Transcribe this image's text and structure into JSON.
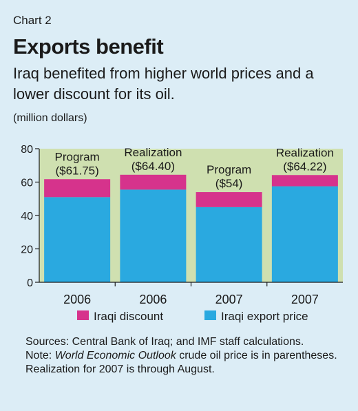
{
  "header": {
    "chart_number": "Chart 2",
    "title": "Exports benefit",
    "subtitle": "Iraq benefited from higher world prices and a lower discount for its oil.",
    "unit": "(million dollars)"
  },
  "chart_data": {
    "type": "bar",
    "stacked": true,
    "categories": [
      "2006",
      "2006",
      "2007",
      "2007"
    ],
    "bar_labels": [
      [
        "Program",
        "($61.75)"
      ],
      [
        "Realization",
        "($64.40)"
      ],
      [
        "Program",
        "($54)"
      ],
      [
        "Realization",
        "($64.22)"
      ]
    ],
    "series": [
      {
        "name": "Iraqi export price",
        "values": [
          51,
          55.5,
          45,
          57.5
        ],
        "color": "#2aa9e0"
      },
      {
        "name": "Iraqi discount",
        "values": [
          10.75,
          8.9,
          9,
          6.72
        ],
        "color": "#d6338c"
      }
    ],
    "legend_order": [
      "Iraqi discount",
      "Iraqi export price"
    ],
    "legend_position": "bottom",
    "ylim": [
      0,
      80
    ],
    "yticks": [
      0,
      20,
      40,
      60,
      80
    ],
    "grid": false,
    "plot_background": "#cfe0b0"
  },
  "notes": {
    "sources": "Sources: Central Bank of Iraq; and IMF staff calculations.",
    "note_prefix": "Note: ",
    "note_italic": "World Economic Outlook",
    "note_rest": " crude oil price is in parentheses. Realization for 2007 is through August."
  }
}
